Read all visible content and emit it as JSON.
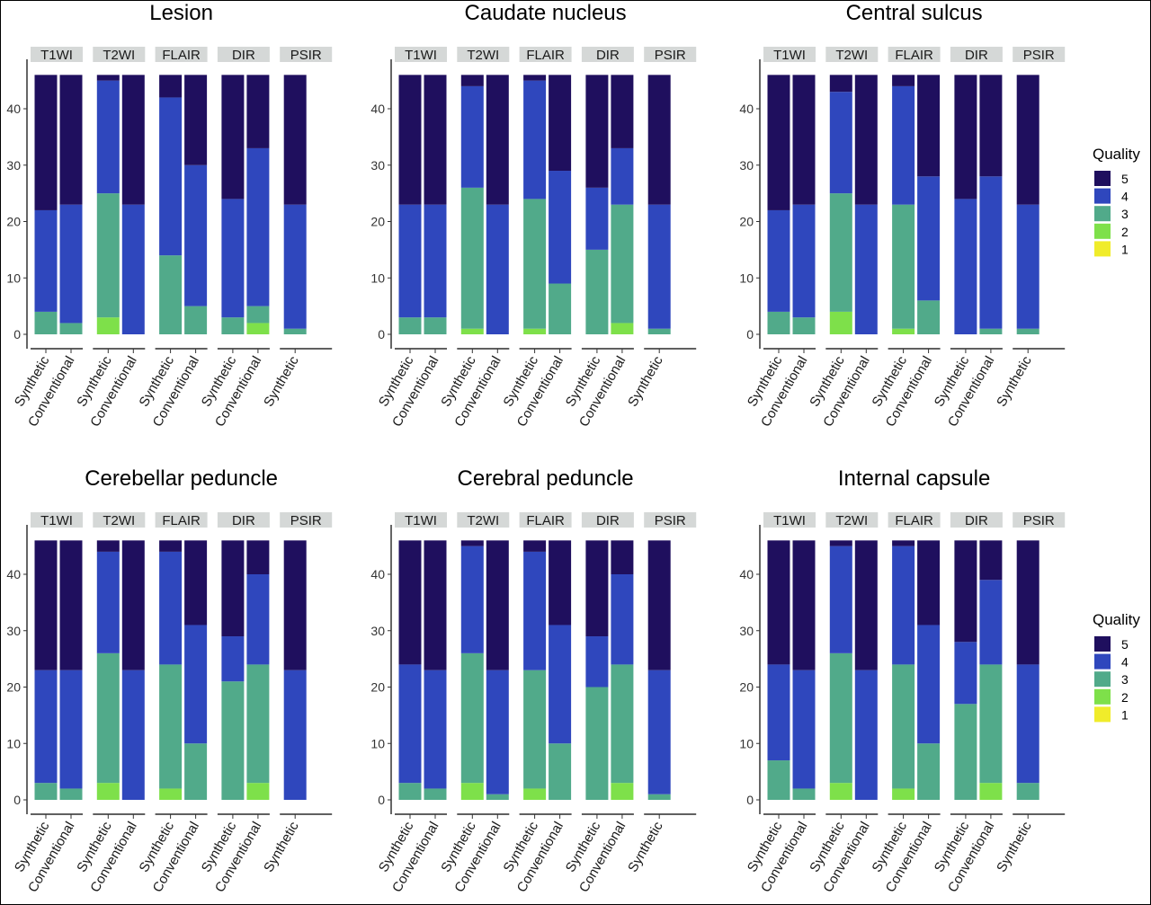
{
  "colors": {
    "5": "#1f0f5e",
    "4": "#2f47bd",
    "3": "#51aa8a",
    "2": "#7ee04a",
    "1": "#f0ec2a",
    "strip": "#d5d8d7"
  },
  "legend": {
    "title": "Quality",
    "levels": [
      "5",
      "4",
      "3",
      "2",
      "1"
    ]
  },
  "chart_data": [
    {
      "type": "bar",
      "stacked": true,
      "title": "Lesion",
      "ylim": [
        0,
        47
      ],
      "yticks": [
        0,
        10,
        20,
        30,
        40
      ],
      "facets": [
        {
          "name": "T1WI",
          "bars": [
            {
              "label": "Synthetic",
              "counts": {
                "1": 0,
                "2": 0,
                "3": 4,
                "4": 18,
                "5": 24
              }
            },
            {
              "label": "Conventional",
              "counts": {
                "1": 0,
                "2": 0,
                "3": 2,
                "4": 21,
                "5": 23
              }
            }
          ]
        },
        {
          "name": "T2WI",
          "bars": [
            {
              "label": "Synthetic",
              "counts": {
                "1": 0,
                "2": 3,
                "3": 22,
                "4": 20,
                "5": 1
              }
            },
            {
              "label": "Conventional",
              "counts": {
                "1": 0,
                "2": 0,
                "3": 0,
                "4": 23,
                "5": 23
              }
            }
          ]
        },
        {
          "name": "FLAIR",
          "bars": [
            {
              "label": "Synthetic",
              "counts": {
                "1": 0,
                "2": 0,
                "3": 14,
                "4": 28,
                "5": 4
              }
            },
            {
              "label": "Conventional",
              "counts": {
                "1": 0,
                "2": 0,
                "3": 5,
                "4": 25,
                "5": 16
              }
            }
          ]
        },
        {
          "name": "DIR",
          "bars": [
            {
              "label": "Synthetic",
              "counts": {
                "1": 0,
                "2": 0,
                "3": 3,
                "4": 21,
                "5": 22
              }
            },
            {
              "label": "Conventional",
              "counts": {
                "1": 0,
                "2": 2,
                "3": 3,
                "4": 28,
                "5": 13
              }
            }
          ]
        },
        {
          "name": "PSIR",
          "bars": [
            {
              "label": "Synthetic",
              "counts": {
                "1": 0,
                "2": 0,
                "3": 1,
                "4": 22,
                "5": 23
              }
            }
          ]
        }
      ]
    },
    {
      "type": "bar",
      "stacked": true,
      "title": "Caudate nucleus",
      "ylim": [
        0,
        47
      ],
      "yticks": [
        0,
        10,
        20,
        30,
        40
      ],
      "facets": [
        {
          "name": "T1WI",
          "bars": [
            {
              "label": "Synthetic",
              "counts": {
                "1": 0,
                "2": 0,
                "3": 3,
                "4": 20,
                "5": 23
              }
            },
            {
              "label": "Conventional",
              "counts": {
                "1": 0,
                "2": 0,
                "3": 3,
                "4": 20,
                "5": 23
              }
            }
          ]
        },
        {
          "name": "T2WI",
          "bars": [
            {
              "label": "Synthetic",
              "counts": {
                "1": 0,
                "2": 1,
                "3": 25,
                "4": 18,
                "5": 2
              }
            },
            {
              "label": "Conventional",
              "counts": {
                "1": 0,
                "2": 0,
                "3": 0,
                "4": 23,
                "5": 23
              }
            }
          ]
        },
        {
          "name": "FLAIR",
          "bars": [
            {
              "label": "Synthetic",
              "counts": {
                "1": 0,
                "2": 1,
                "3": 23,
                "4": 21,
                "5": 1
              }
            },
            {
              "label": "Conventional",
              "counts": {
                "1": 0,
                "2": 0,
                "3": 9,
                "4": 20,
                "5": 17
              }
            }
          ]
        },
        {
          "name": "DIR",
          "bars": [
            {
              "label": "Synthetic",
              "counts": {
                "1": 0,
                "2": 0,
                "3": 15,
                "4": 11,
                "5": 20
              }
            },
            {
              "label": "Conventional",
              "counts": {
                "1": 0,
                "2": 2,
                "3": 21,
                "4": 10,
                "5": 13
              }
            }
          ]
        },
        {
          "name": "PSIR",
          "bars": [
            {
              "label": "Synthetic",
              "counts": {
                "1": 0,
                "2": 0,
                "3": 1,
                "4": 22,
                "5": 23
              }
            }
          ]
        }
      ]
    },
    {
      "type": "bar",
      "stacked": true,
      "title": "Central sulcus",
      "ylim": [
        0,
        47
      ],
      "yticks": [
        0,
        10,
        20,
        30,
        40
      ],
      "facets": [
        {
          "name": "T1WI",
          "bars": [
            {
              "label": "Synthetic",
              "counts": {
                "1": 0,
                "2": 0,
                "3": 4,
                "4": 18,
                "5": 24
              }
            },
            {
              "label": "Conventional",
              "counts": {
                "1": 0,
                "2": 0,
                "3": 3,
                "4": 20,
                "5": 23
              }
            }
          ]
        },
        {
          "name": "T2WI",
          "bars": [
            {
              "label": "Synthetic",
              "counts": {
                "1": 0,
                "2": 4,
                "3": 21,
                "4": 18,
                "5": 3
              }
            },
            {
              "label": "Conventional",
              "counts": {
                "1": 0,
                "2": 0,
                "3": 0,
                "4": 23,
                "5": 23
              }
            }
          ]
        },
        {
          "name": "FLAIR",
          "bars": [
            {
              "label": "Synthetic",
              "counts": {
                "1": 0,
                "2": 1,
                "3": 22,
                "4": 21,
                "5": 2
              }
            },
            {
              "label": "Conventional",
              "counts": {
                "1": 0,
                "2": 0,
                "3": 6,
                "4": 22,
                "5": 18
              }
            }
          ]
        },
        {
          "name": "DIR",
          "bars": [
            {
              "label": "Synthetic",
              "counts": {
                "1": 0,
                "2": 0,
                "3": 0,
                "4": 24,
                "5": 22
              }
            },
            {
              "label": "Conventional",
              "counts": {
                "1": 0,
                "2": 0,
                "3": 1,
                "4": 27,
                "5": 18
              }
            }
          ]
        },
        {
          "name": "PSIR",
          "bars": [
            {
              "label": "Synthetic",
              "counts": {
                "1": 0,
                "2": 0,
                "3": 1,
                "4": 22,
                "5": 23
              }
            }
          ]
        }
      ]
    },
    {
      "type": "bar",
      "stacked": true,
      "title": "Cerebellar peduncle",
      "ylim": [
        0,
        47
      ],
      "yticks": [
        0,
        10,
        20,
        30,
        40
      ],
      "facets": [
        {
          "name": "T1WI",
          "bars": [
            {
              "label": "Synthetic",
              "counts": {
                "1": 0,
                "2": 0,
                "3": 3,
                "4": 20,
                "5": 23
              }
            },
            {
              "label": "Conventional",
              "counts": {
                "1": 0,
                "2": 0,
                "3": 2,
                "4": 21,
                "5": 23
              }
            }
          ]
        },
        {
          "name": "T2WI",
          "bars": [
            {
              "label": "Synthetic",
              "counts": {
                "1": 0,
                "2": 3,
                "3": 23,
                "4": 18,
                "5": 2
              }
            },
            {
              "label": "Conventional",
              "counts": {
                "1": 0,
                "2": 0,
                "3": 0,
                "4": 23,
                "5": 23
              }
            }
          ]
        },
        {
          "name": "FLAIR",
          "bars": [
            {
              "label": "Synthetic",
              "counts": {
                "1": 0,
                "2": 2,
                "3": 22,
                "4": 20,
                "5": 2
              }
            },
            {
              "label": "Conventional",
              "counts": {
                "1": 0,
                "2": 0,
                "3": 10,
                "4": 21,
                "5": 15
              }
            }
          ]
        },
        {
          "name": "DIR",
          "bars": [
            {
              "label": "Synthetic",
              "counts": {
                "1": 0,
                "2": 0,
                "3": 21,
                "4": 8,
                "5": 17
              }
            },
            {
              "label": "Conventional",
              "counts": {
                "1": 0,
                "2": 3,
                "3": 21,
                "4": 16,
                "5": 6
              }
            }
          ]
        },
        {
          "name": "PSIR",
          "bars": [
            {
              "label": "Synthetic",
              "counts": {
                "1": 0,
                "2": 0,
                "3": 0,
                "4": 23,
                "5": 23
              }
            }
          ]
        }
      ]
    },
    {
      "type": "bar",
      "stacked": true,
      "title": "Cerebral peduncle",
      "ylim": [
        0,
        47
      ],
      "yticks": [
        0,
        10,
        20,
        30,
        40
      ],
      "facets": [
        {
          "name": "T1WI",
          "bars": [
            {
              "label": "Synthetic",
              "counts": {
                "1": 0,
                "2": 0,
                "3": 3,
                "4": 21,
                "5": 22
              }
            },
            {
              "label": "Conventional",
              "counts": {
                "1": 0,
                "2": 0,
                "3": 2,
                "4": 21,
                "5": 23
              }
            }
          ]
        },
        {
          "name": "T2WI",
          "bars": [
            {
              "label": "Synthetic",
              "counts": {
                "1": 0,
                "2": 3,
                "3": 23,
                "4": 19,
                "5": 1
              }
            },
            {
              "label": "Conventional",
              "counts": {
                "1": 0,
                "2": 0,
                "3": 1,
                "4": 22,
                "5": 23
              }
            }
          ]
        },
        {
          "name": "FLAIR",
          "bars": [
            {
              "label": "Synthetic",
              "counts": {
                "1": 0,
                "2": 2,
                "3": 21,
                "4": 21,
                "5": 2
              }
            },
            {
              "label": "Conventional",
              "counts": {
                "1": 0,
                "2": 0,
                "3": 10,
                "4": 21,
                "5": 15
              }
            }
          ]
        },
        {
          "name": "DIR",
          "bars": [
            {
              "label": "Synthetic",
              "counts": {
                "1": 0,
                "2": 0,
                "3": 20,
                "4": 9,
                "5": 17
              }
            },
            {
              "label": "Conventional",
              "counts": {
                "1": 0,
                "2": 3,
                "3": 21,
                "4": 16,
                "5": 6
              }
            }
          ]
        },
        {
          "name": "PSIR",
          "bars": [
            {
              "label": "Synthetic",
              "counts": {
                "1": 0,
                "2": 0,
                "3": 1,
                "4": 22,
                "5": 23
              }
            }
          ]
        }
      ]
    },
    {
      "type": "bar",
      "stacked": true,
      "title": "Internal capsule",
      "ylim": [
        0,
        47
      ],
      "yticks": [
        0,
        10,
        20,
        30,
        40
      ],
      "facets": [
        {
          "name": "T1WI",
          "bars": [
            {
              "label": "Synthetic",
              "counts": {
                "1": 0,
                "2": 0,
                "3": 7,
                "4": 17,
                "5": 22
              }
            },
            {
              "label": "Conventional",
              "counts": {
                "1": 0,
                "2": 0,
                "3": 2,
                "4": 21,
                "5": 23
              }
            }
          ]
        },
        {
          "name": "T2WI",
          "bars": [
            {
              "label": "Synthetic",
              "counts": {
                "1": 0,
                "2": 3,
                "3": 23,
                "4": 19,
                "5": 1
              }
            },
            {
              "label": "Conventional",
              "counts": {
                "1": 0,
                "2": 0,
                "3": 0,
                "4": 23,
                "5": 23
              }
            }
          ]
        },
        {
          "name": "FLAIR",
          "bars": [
            {
              "label": "Synthetic",
              "counts": {
                "1": 0,
                "2": 2,
                "3": 22,
                "4": 21,
                "5": 1
              }
            },
            {
              "label": "Conventional",
              "counts": {
                "1": 0,
                "2": 0,
                "3": 10,
                "4": 21,
                "5": 15
              }
            }
          ]
        },
        {
          "name": "DIR",
          "bars": [
            {
              "label": "Synthetic",
              "counts": {
                "1": 0,
                "2": 0,
                "3": 17,
                "4": 11,
                "5": 18
              }
            },
            {
              "label": "Conventional",
              "counts": {
                "1": 0,
                "2": 3,
                "3": 21,
                "4": 15,
                "5": 7
              }
            }
          ]
        },
        {
          "name": "PSIR",
          "bars": [
            {
              "label": "Synthetic",
              "counts": {
                "1": 0,
                "2": 0,
                "3": 3,
                "4": 21,
                "5": 22
              }
            }
          ]
        }
      ]
    }
  ]
}
